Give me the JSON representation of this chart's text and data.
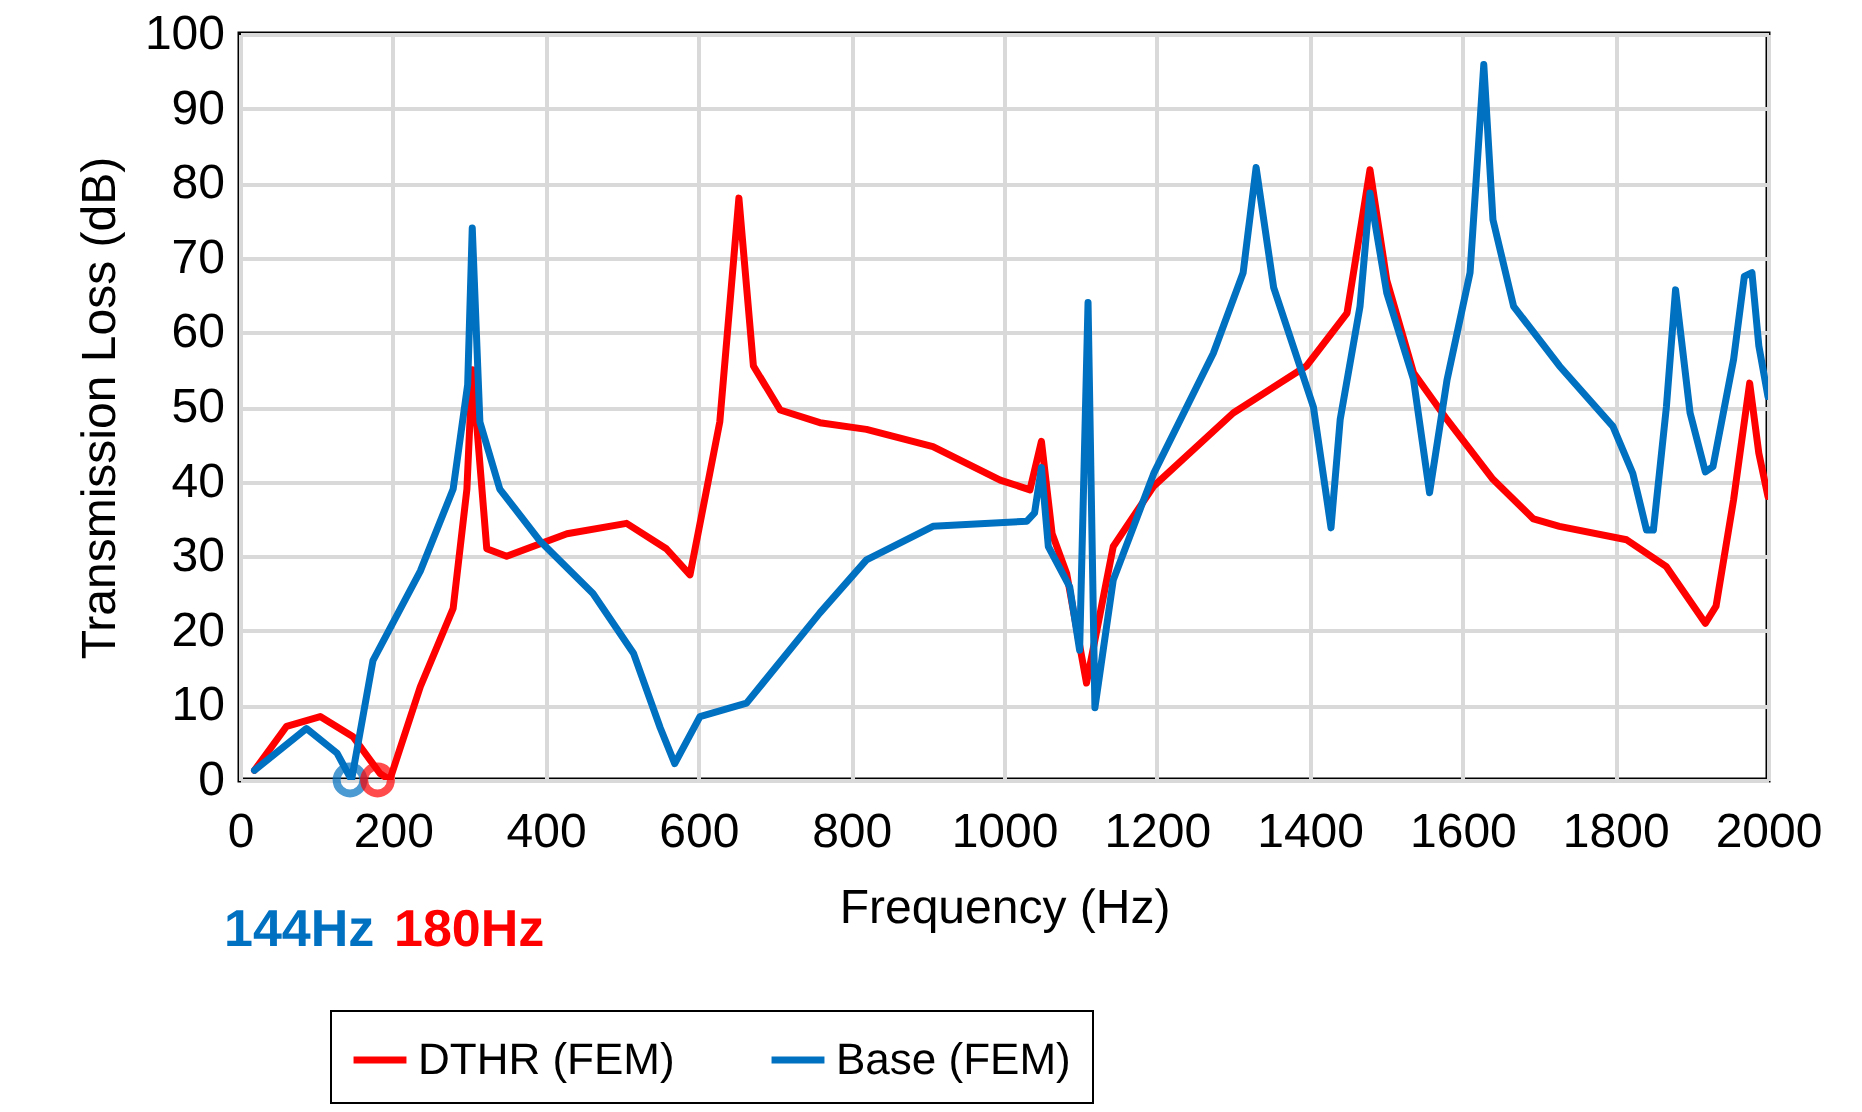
{
  "chart_data": {
    "type": "line",
    "xlabel": "Frequency (Hz)",
    "ylabel": "Transmission Loss (dB)",
    "xlim": [
      0,
      2000
    ],
    "xticks": [
      0,
      200,
      400,
      600,
      800,
      1000,
      1200,
      1400,
      1600,
      1800,
      2000
    ],
    "ylim": [
      0,
      100
    ],
    "yticks": [
      0,
      10,
      20,
      30,
      40,
      50,
      60,
      70,
      80,
      90,
      100
    ],
    "grid": true,
    "legend": "bottom",
    "line_style": "solid",
    "annotations": [
      {
        "text": "144Hz",
        "x": 144,
        "y": 0
      },
      {
        "text": "180Hz",
        "x": 180,
        "y": 0
      }
    ],
    "series": [
      {
        "name": "DTHR (FEM)",
        "color": "#ff0000",
        "x": [
          19,
          61,
          105,
          148,
          183,
          196,
          236,
          279,
          297,
          304,
          323,
          349,
          428,
          506,
          558,
          589,
          628,
          653,
          672,
          707,
          759,
          820,
          907,
          995,
          1034,
          1049,
          1063,
          1082,
          1108,
          1143,
          1196,
          1300,
          1396,
          1449,
          1479,
          1501,
          1536,
          1580,
          1640,
          1693,
          1727,
          1815,
          1867,
          1918,
          1932,
          1955,
          1976,
          1988,
          2000
        ],
        "values": [
          1.3,
          7.2,
          8.5,
          5.8,
          0.9,
          0,
          12.5,
          23,
          39,
          55,
          31,
          30,
          33,
          34.4,
          31,
          27.5,
          48,
          78,
          55.5,
          49.6,
          47.9,
          47,
          44.7,
          40.2,
          38.9,
          45.4,
          33,
          27.7,
          13,
          31.3,
          39.4,
          49.2,
          55.5,
          62.6,
          81.8,
          67,
          54.6,
          48.3,
          40.3,
          35,
          34,
          32.2,
          28.6,
          21,
          23.3,
          37.6,
          53.2,
          43.8,
          38
        ]
      },
      {
        "name": "Base (FEM)",
        "color": "#0070c0",
        "x": [
          19,
          87,
          127,
          146,
          174,
          236,
          279,
          298,
          304,
          314,
          340,
          393,
          462,
          515,
          550,
          569,
          602,
          663,
          759,
          820,
          907,
          1030,
          1040,
          1049,
          1058,
          1086,
          1099,
          1110,
          1119,
          1143,
          1196,
          1274,
          1313,
          1330,
          1353,
          1405,
          1428,
          1440,
          1466,
          1479,
          1501,
          1536,
          1557,
          1580,
          1610,
          1628,
          1640,
          1667,
          1727,
          1797,
          1823,
          1841,
          1850,
          1867,
          1879,
          1898,
          1918,
          1928,
          1955,
          1969,
          1979,
          1988,
          2000
        ],
        "values": [
          1.3,
          6.9,
          3.6,
          0,
          16,
          28,
          39,
          53,
          74,
          48,
          39,
          32,
          25,
          17,
          7,
          2.2,
          8.5,
          10.3,
          22.4,
          29.5,
          34,
          34.7,
          35.8,
          41.9,
          31.3,
          25.9,
          17.4,
          64,
          9.7,
          26.8,
          41.1,
          57.2,
          68,
          82.1,
          66,
          50,
          33.8,
          48.3,
          63.5,
          78.7,
          65.3,
          53.7,
          38.5,
          53.7,
          68,
          95.9,
          75.1,
          63.5,
          55.5,
          47.4,
          41.1,
          33.5,
          33.5,
          50,
          65.7,
          49.2,
          41.3,
          42,
          56.4,
          67.5,
          68,
          58.2,
          51.4
        ]
      }
    ]
  }
}
